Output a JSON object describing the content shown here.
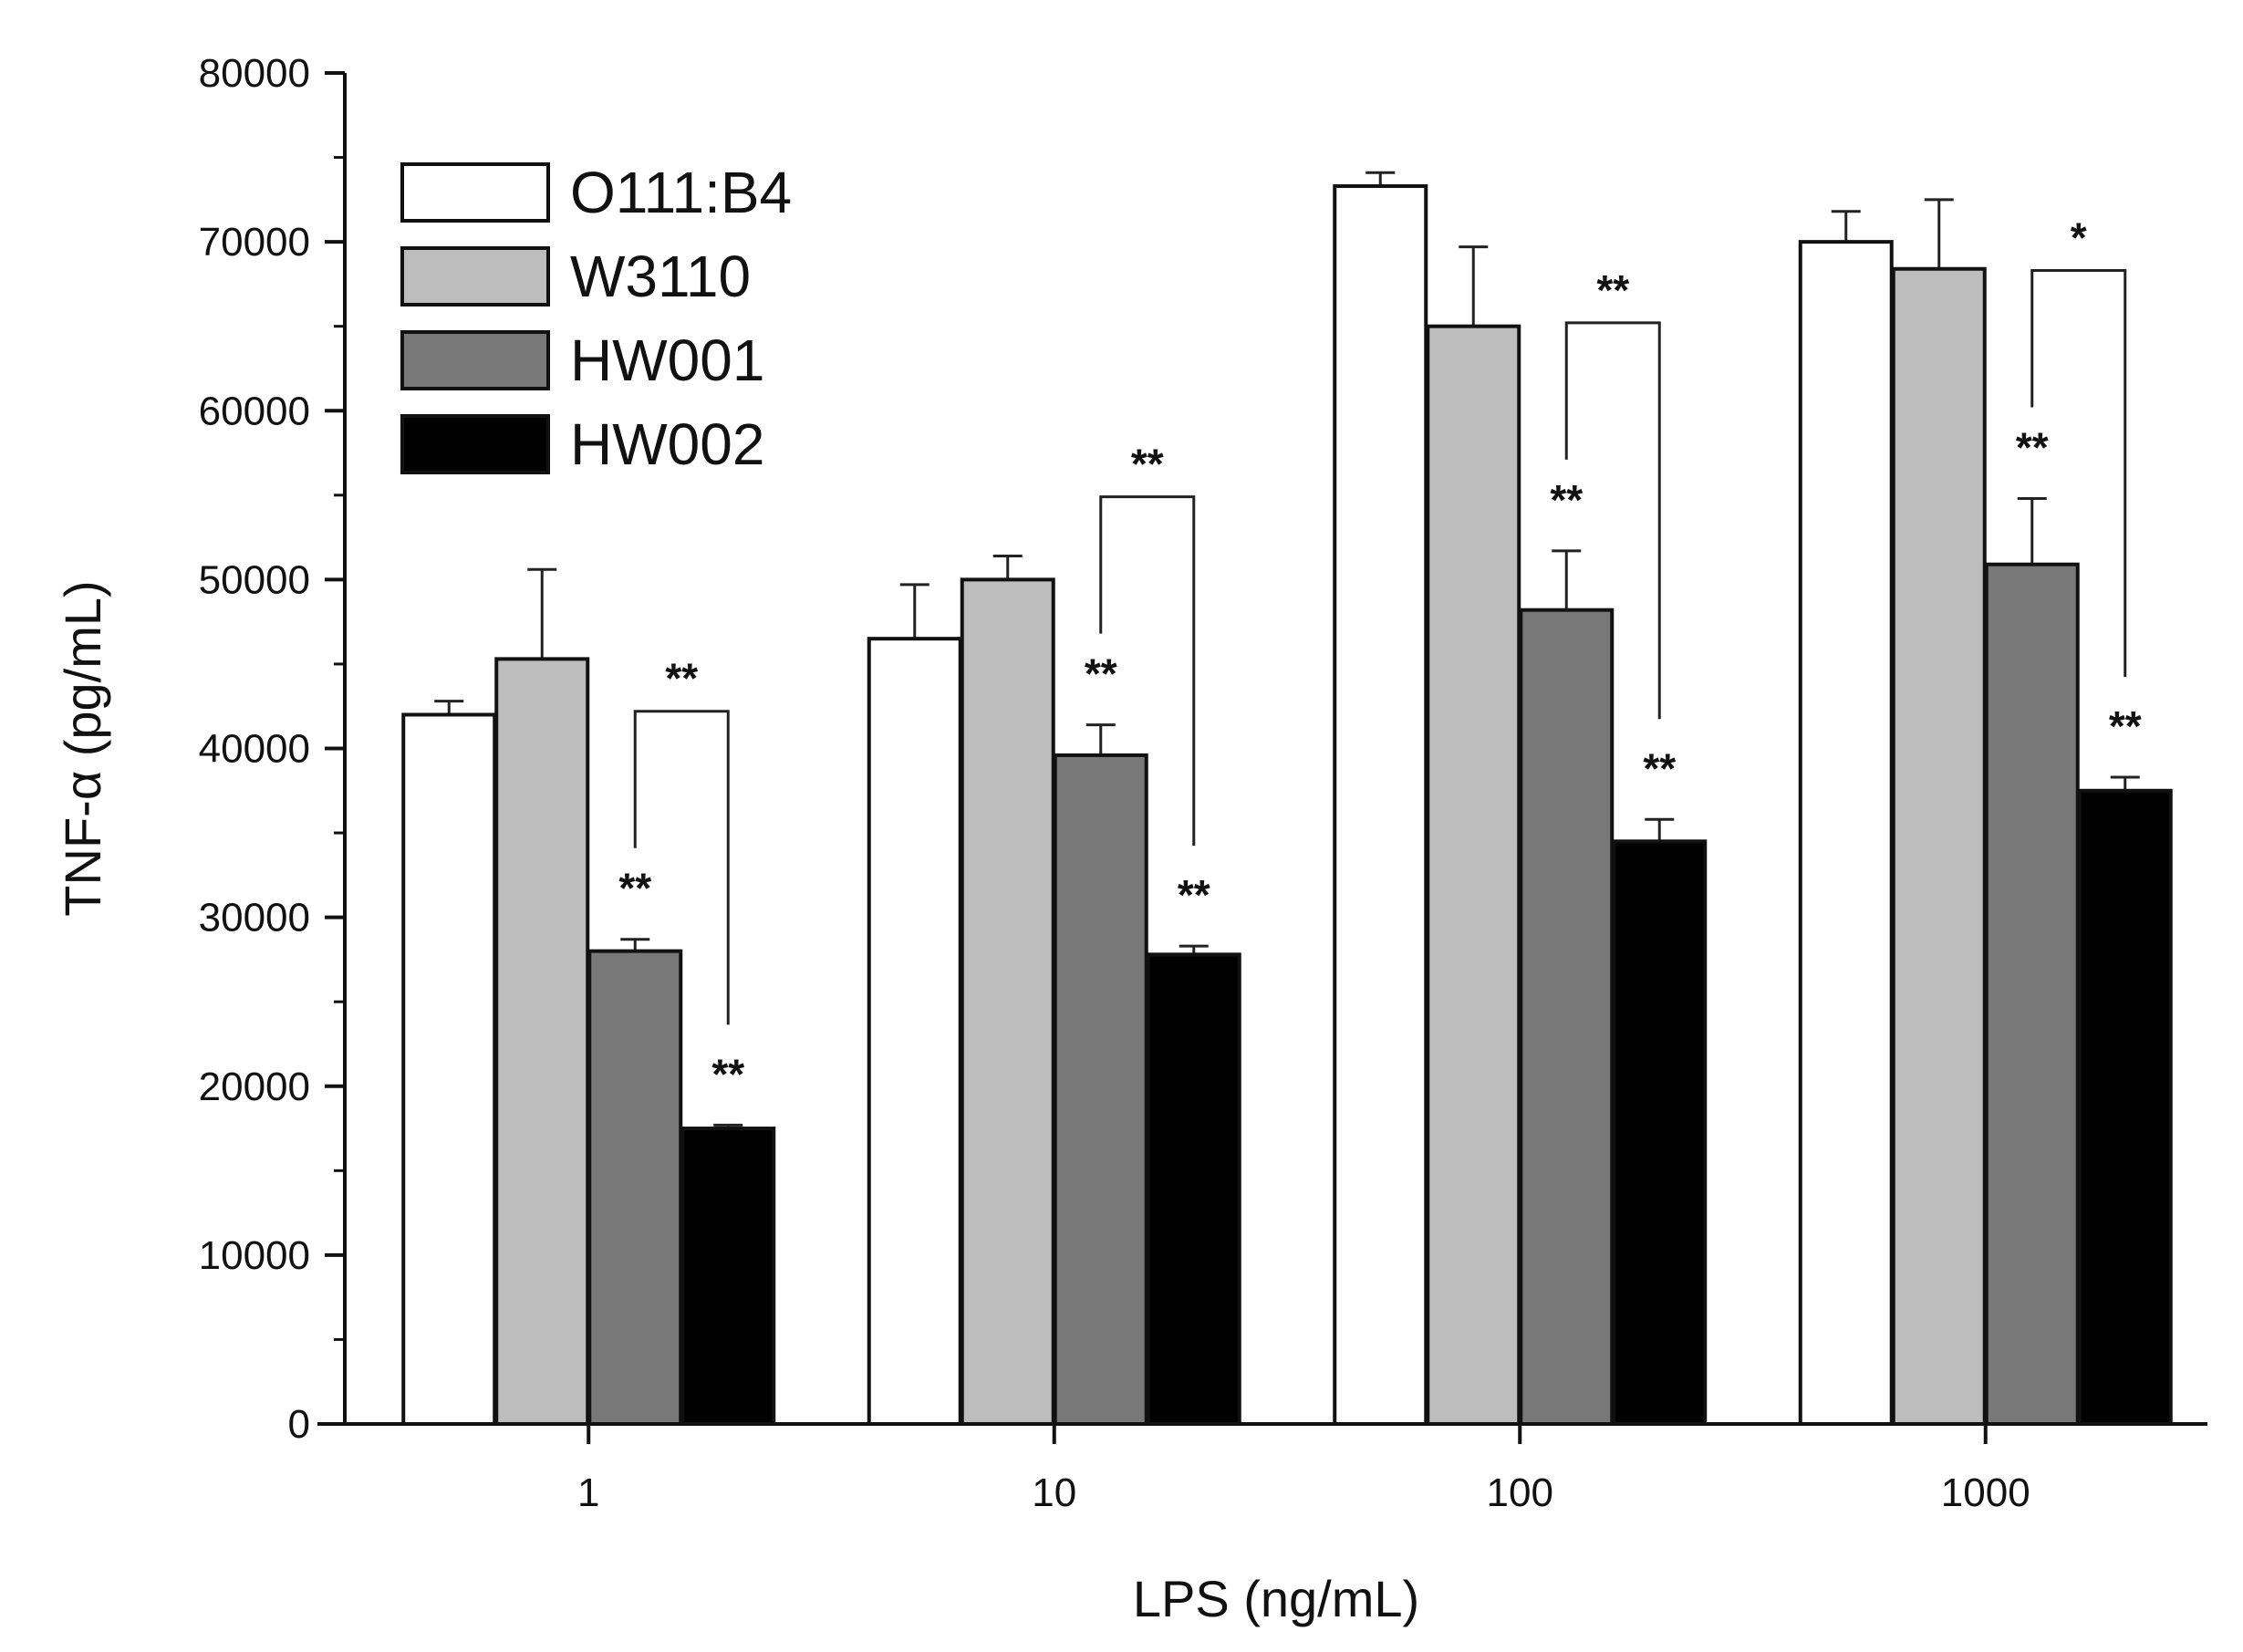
{
  "chart_data": {
    "type": "bar",
    "title": "",
    "xlabel": "LPS (ng/mL)",
    "ylabel": "TNF-α (pg/mL)",
    "ylim": [
      0,
      80000
    ],
    "yticks": [
      0,
      10000,
      20000,
      30000,
      40000,
      50000,
      60000,
      70000,
      80000
    ],
    "ytick_labels": [
      "0",
      "10000",
      "20000",
      "30000",
      "40000",
      "50000",
      "60000",
      "70000",
      "80000"
    ],
    "categories": [
      "1",
      "10",
      "100",
      "1000"
    ],
    "legend_position": "top-left",
    "series": [
      {
        "name": "O111:B4",
        "color": "#ffffff",
        "values": [
          42000,
          46500,
          73300,
          70000
        ],
        "errors": [
          800,
          3200,
          800,
          1800
        ]
      },
      {
        "name": "W3110",
        "color": "#bdbdbd",
        "values": [
          45300,
          50000,
          65000,
          68400
        ],
        "errors": [
          5300,
          1400,
          4700,
          4100
        ]
      },
      {
        "name": "HW001",
        "color": "#787878",
        "values": [
          28000,
          39600,
          48200,
          50900
        ],
        "errors": [
          700,
          1800,
          3500,
          3900
        ]
      },
      {
        "name": "HW002",
        "color": "#000000",
        "values": [
          17500,
          27800,
          34500,
          37500
        ],
        "errors": [
          200,
          500,
          1300,
          800
        ]
      }
    ],
    "annotations": [
      {
        "category": 0,
        "series": 2,
        "text": "**"
      },
      {
        "category": 0,
        "series": 3,
        "text": "**"
      },
      {
        "category": 0,
        "bracket": [
          2,
          3
        ],
        "text": "**"
      },
      {
        "category": 1,
        "series": 2,
        "text": "**"
      },
      {
        "category": 1,
        "series": 3,
        "text": "**"
      },
      {
        "category": 1,
        "bracket": [
          2,
          3
        ],
        "text": "**"
      },
      {
        "category": 2,
        "series": 2,
        "text": "**"
      },
      {
        "category": 2,
        "series": 3,
        "text": "**"
      },
      {
        "category": 2,
        "bracket": [
          2,
          3
        ],
        "text": "**"
      },
      {
        "category": 3,
        "series": 2,
        "text": "**"
      },
      {
        "category": 3,
        "series": 3,
        "text": "**"
      },
      {
        "category": 3,
        "bracket": [
          2,
          3
        ],
        "text": "*"
      }
    ]
  }
}
